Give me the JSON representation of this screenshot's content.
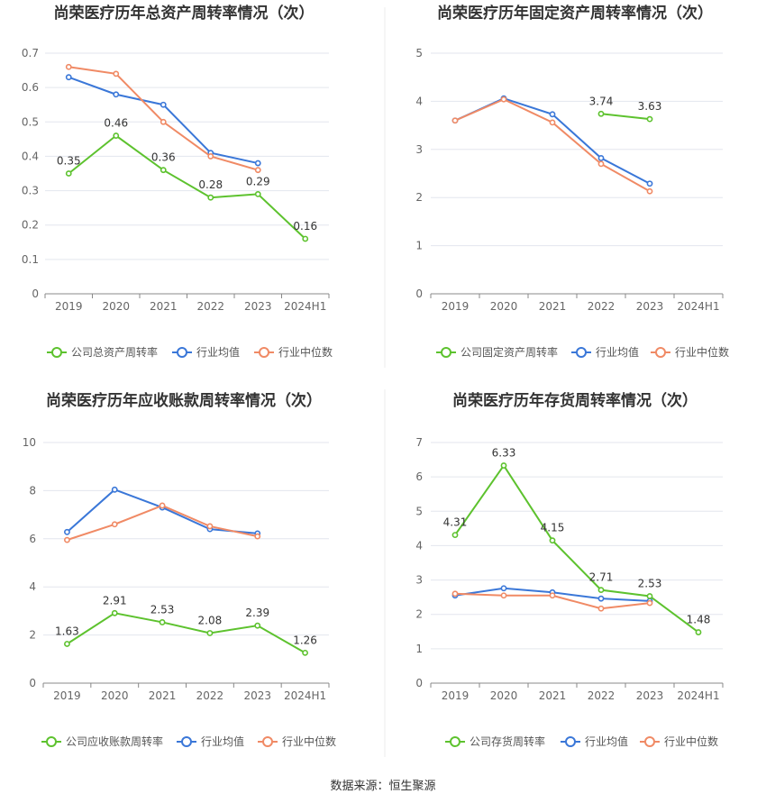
{
  "source": "数据来源：恒生聚源",
  "colors": {
    "company": "#5dc22e",
    "avg": "#3a77d8",
    "median": "#f08a65",
    "grid": "#e3e6ee",
    "axis": "#888888"
  },
  "chart_data": [
    {
      "type": "line",
      "title": "尚荣医疗历年总资产周转率情况（次）",
      "categories": [
        "2019",
        "2020",
        "2021",
        "2022",
        "2023",
        "2024H1"
      ],
      "yticks": [
        "0",
        "0.1",
        "0.2",
        "0.3",
        "0.4",
        "0.5",
        "0.6",
        "0.7"
      ],
      "ylim": [
        0,
        0.7
      ],
      "grid": true,
      "legend_position": "bottom",
      "series": [
        {
          "name": "公司总资产周转率",
          "role": "company",
          "values": [
            0.35,
            0.46,
            0.36,
            0.28,
            0.29,
            0.16
          ],
          "labels": [
            "0.35",
            "0.46",
            "0.36",
            "0.28",
            "0.29",
            "0.16"
          ]
        },
        {
          "name": "行业均值",
          "role": "avg",
          "values": [
            0.63,
            0.58,
            0.55,
            0.41,
            0.38,
            null
          ]
        },
        {
          "name": "行业中位数",
          "role": "median",
          "values": [
            0.66,
            0.64,
            0.5,
            0.4,
            0.36,
            null
          ]
        }
      ]
    },
    {
      "type": "line",
      "title": "尚荣医疗历年固定资产周转率情况（次）",
      "categories": [
        "2019",
        "2020",
        "2021",
        "2022",
        "2023",
        "2024H1"
      ],
      "yticks": [
        "0",
        "1",
        "2",
        "3",
        "4",
        "5"
      ],
      "ylim": [
        0,
        5
      ],
      "grid": true,
      "legend_position": "bottom",
      "series": [
        {
          "name": "公司固定资产周转率",
          "role": "company",
          "values": [
            null,
            null,
            null,
            3.74,
            3.63,
            null
          ],
          "labels": [
            "",
            "",
            "",
            "3.74",
            "3.63",
            ""
          ]
        },
        {
          "name": "行业均值",
          "role": "avg",
          "values": [
            3.6,
            4.06,
            3.73,
            2.82,
            2.29,
            null
          ]
        },
        {
          "name": "行业中位数",
          "role": "median",
          "values": [
            3.6,
            4.04,
            3.56,
            2.7,
            2.13,
            null
          ]
        }
      ]
    },
    {
      "type": "line",
      "title": "尚荣医疗历年应收账款周转率情况（次）",
      "categories": [
        "2019",
        "2020",
        "2021",
        "2022",
        "2023",
        "2024H1"
      ],
      "yticks": [
        "0",
        "2",
        "4",
        "6",
        "8",
        "10"
      ],
      "ylim": [
        0,
        10
      ],
      "grid": true,
      "legend_position": "bottom",
      "series": [
        {
          "name": "公司应收账款周转率",
          "role": "company",
          "values": [
            1.63,
            2.91,
            2.53,
            2.08,
            2.39,
            1.26
          ],
          "labels": [
            "1.63",
            "2.91",
            "2.53",
            "2.08",
            "2.39",
            "1.26"
          ]
        },
        {
          "name": "行业均值",
          "role": "avg",
          "values": [
            6.28,
            8.04,
            7.3,
            6.4,
            6.22,
            null
          ]
        },
        {
          "name": "行业中位数",
          "role": "median",
          "values": [
            5.95,
            6.6,
            7.38,
            6.52,
            6.1,
            null
          ]
        }
      ]
    },
    {
      "type": "line",
      "title": "尚荣医疗历年存货周转率情况（次）",
      "categories": [
        "2019",
        "2020",
        "2021",
        "2022",
        "2023",
        "2024H1"
      ],
      "yticks": [
        "0",
        "1",
        "2",
        "3",
        "4",
        "5",
        "6",
        "7"
      ],
      "ylim": [
        0,
        7
      ],
      "grid": true,
      "legend_position": "bottom",
      "series": [
        {
          "name": "公司存货周转率",
          "role": "company",
          "values": [
            4.31,
            6.33,
            4.15,
            2.71,
            2.53,
            1.48
          ],
          "labels": [
            "4.31",
            "6.33",
            "4.15",
            "2.71",
            "2.53",
            "1.48"
          ]
        },
        {
          "name": "行业均值",
          "role": "avg",
          "values": [
            2.55,
            2.76,
            2.64,
            2.46,
            2.39,
            null
          ]
        },
        {
          "name": "行业中位数",
          "role": "median",
          "values": [
            2.6,
            2.55,
            2.55,
            2.17,
            2.33,
            null
          ]
        }
      ]
    }
  ]
}
